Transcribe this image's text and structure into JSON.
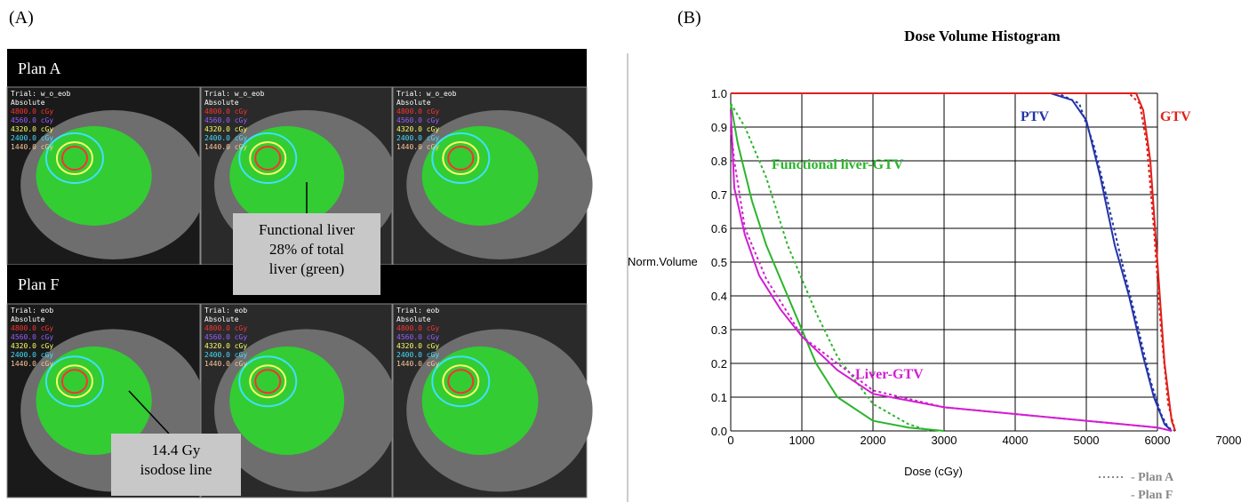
{
  "panel_a": {
    "label": "(A)",
    "rows": [
      {
        "title": "Plan A",
        "trial": "Trial: w_o_eob"
      },
      {
        "title": "Plan F",
        "trial": "Trial: eob"
      }
    ],
    "overlay": {
      "mode": "Absolute",
      "levels": [
        {
          "text": "4800.0 cGy",
          "color": "#ff3030"
        },
        {
          "text": "4560.0 cGy",
          "color": "#9a5cff"
        },
        {
          "text": "4320.0 cGy",
          "color": "#ffff66"
        },
        {
          "text": "2400.0 cGy",
          "color": "#40e0ff"
        },
        {
          "text": "1440.0 cGy",
          "color": "#ffc89a"
        }
      ]
    },
    "annotations": [
      {
        "lines": [
          "Functional liver",
          "28% of total",
          "liver (green)"
        ]
      },
      {
        "lines": [
          "14.4 Gy",
          "isodose line"
        ]
      }
    ]
  },
  "panel_b": {
    "label": "(B)"
  },
  "chart_data": {
    "type": "line",
    "title": "Dose Volume Histogram",
    "xlabel": "Dose (cGy)",
    "ylabel": "Norm.Volume",
    "xlim": [
      0,
      7000
    ],
    "xticks": [
      0,
      1000,
      2000,
      3000,
      4000,
      5000,
      6000,
      7000
    ],
    "ylim": [
      0,
      1
    ],
    "yticks": [
      {
        "value": 0,
        "label": "0.0"
      },
      0.1,
      0.2,
      0.3,
      0.4,
      0.5,
      0.6,
      0.7,
      0.8,
      0.9,
      {
        "value": 1,
        "label": "1.0"
      }
    ],
    "grid": true,
    "legend": [
      {
        "label": "- Plan A",
        "dash": "dotted"
      },
      {
        "label": "- Plan F",
        "dash": "solid"
      }
    ],
    "series": [
      {
        "name": "PTV",
        "color": "#2233a8",
        "plans": [
          {
            "x": [
              0,
              4600,
              4900,
              5100,
              5300,
              5500,
              5700,
              5900,
              6050,
              6150,
              6250
            ],
            "values": [
              1,
              1,
              0.97,
              0.85,
              0.68,
              0.5,
              0.33,
              0.15,
              0.05,
              0.01,
              0
            ]
          },
          {
            "x": [
              0,
              4500,
              4800,
              5000,
              5200,
              5400,
              5600,
              5800,
              5950,
              6100,
              6200
            ],
            "values": [
              1,
              1,
              0.98,
              0.92,
              0.75,
              0.55,
              0.4,
              0.22,
              0.1,
              0.02,
              0
            ]
          }
        ]
      },
      {
        "name": "GTV",
        "color": "#e0201a",
        "plans": [
          {
            "x": [
              0,
              5600,
              5750,
              5850,
              5950,
              6050,
              6150,
              6250
            ],
            "values": [
              1,
              1,
              0.97,
              0.85,
              0.6,
              0.3,
              0.08,
              0
            ]
          },
          {
            "x": [
              0,
              5700,
              5800,
              5900,
              6000,
              6100,
              6200,
              6250
            ],
            "values": [
              1,
              1,
              0.95,
              0.8,
              0.5,
              0.2,
              0.03,
              0
            ]
          }
        ]
      },
      {
        "name": "Functional liver-GTV",
        "color": "#2ab52a",
        "plans": [
          {
            "x": [
              0,
              200,
              500,
              800,
              1000,
              1200,
              1500,
              2000,
              2500,
              2800
            ],
            "values": [
              0.97,
              0.9,
              0.75,
              0.55,
              0.45,
              0.35,
              0.22,
              0.08,
              0.02,
              0
            ]
          },
          {
            "x": [
              0,
              100,
              300,
              500,
              800,
              1000,
              1200,
              1500,
              2000,
              2500,
              3000
            ],
            "values": [
              0.97,
              0.85,
              0.68,
              0.55,
              0.4,
              0.3,
              0.2,
              0.1,
              0.03,
              0.01,
              0
            ]
          }
        ]
      },
      {
        "name": "Liver-GTV",
        "color": "#d21ed2",
        "plans": [
          {
            "x": [
              0,
              50,
              200,
              500,
              800,
              1000,
              1500,
              2000,
              3000,
              4000,
              5000,
              5500,
              6000,
              6200
            ],
            "values": [
              0.9,
              0.8,
              0.6,
              0.45,
              0.35,
              0.28,
              0.2,
              0.12,
              0.07,
              0.05,
              0.03,
              0.02,
              0.01,
              0
            ]
          },
          {
            "x": [
              0,
              50,
              200,
              400,
              700,
              1000,
              1500,
              2000,
              3000,
              4000,
              5000,
              5500,
              6000,
              6200
            ],
            "values": [
              0.95,
              0.72,
              0.58,
              0.46,
              0.36,
              0.28,
              0.18,
              0.11,
              0.07,
              0.05,
              0.03,
              0.02,
              0.01,
              0
            ]
          }
        ]
      }
    ]
  }
}
